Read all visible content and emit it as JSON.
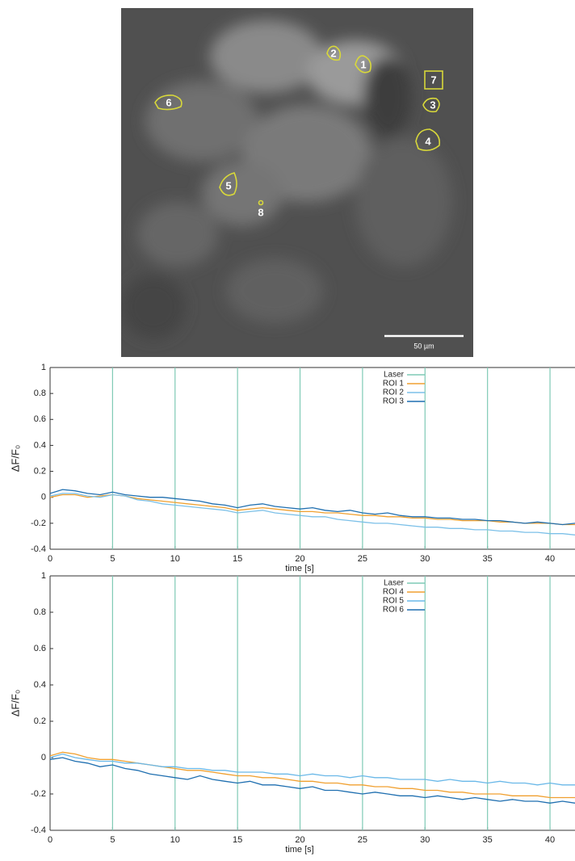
{
  "image": {
    "roi_labels": [
      "1",
      "2",
      "3",
      "4",
      "5",
      "6",
      "7",
      "8"
    ],
    "scale_bar": "50 µm"
  },
  "chart_data": [
    {
      "type": "line",
      "y_label": "ΔF/F₀",
      "x_label": "time [s]",
      "xlim": [
        0,
        42
      ],
      "xticks": [
        0,
        5,
        10,
        15,
        20,
        25,
        30,
        35,
        40
      ],
      "ylim": [
        -0.4,
        1
      ],
      "yticks": [
        -0.4,
        -0.2,
        0,
        0.2,
        0.4,
        0.6,
        0.8,
        1
      ],
      "events": {
        "name": "Laser",
        "color": "#7fcab5",
        "x": [
          5,
          10,
          15,
          20,
          25,
          30,
          35,
          40
        ]
      },
      "x": [
        0,
        1,
        2,
        3,
        4,
        5,
        6,
        7,
        8,
        9,
        10,
        11,
        12,
        13,
        14,
        15,
        16,
        17,
        18,
        19,
        20,
        21,
        22,
        23,
        24,
        25,
        26,
        27,
        28,
        29,
        30,
        31,
        32,
        33,
        34,
        35,
        36,
        37,
        38,
        39,
        40,
        41,
        42
      ],
      "series": [
        {
          "name": "ROI 1",
          "color": "#f0a030",
          "values": [
            0,
            0.02,
            0.02,
            0,
            0.01,
            0.02,
            0.01,
            -0.01,
            -0.02,
            -0.03,
            -0.04,
            -0.05,
            -0.06,
            -0.07,
            -0.08,
            -0.1,
            -0.09,
            -0.08,
            -0.09,
            -0.1,
            -0.11,
            -0.11,
            -0.12,
            -0.12,
            -0.13,
            -0.14,
            -0.14,
            -0.15,
            -0.15,
            -0.16,
            -0.16,
            -0.17,
            -0.17,
            -0.18,
            -0.18,
            -0.18,
            -0.19,
            -0.19,
            -0.2,
            -0.2,
            -0.2,
            -0.21,
            -0.21
          ]
        },
        {
          "name": "ROI 2",
          "color": "#7cc0e8",
          "values": [
            0.01,
            0.03,
            0.03,
            0.01,
            0,
            0.02,
            0.01,
            -0.02,
            -0.03,
            -0.05,
            -0.06,
            -0.07,
            -0.08,
            -0.09,
            -0.1,
            -0.12,
            -0.11,
            -0.1,
            -0.12,
            -0.13,
            -0.14,
            -0.15,
            -0.15,
            -0.17,
            -0.18,
            -0.19,
            -0.2,
            -0.2,
            -0.21,
            -0.22,
            -0.23,
            -0.23,
            -0.24,
            -0.24,
            -0.25,
            -0.25,
            -0.26,
            -0.26,
            -0.27,
            -0.27,
            -0.28,
            -0.28,
            -0.29
          ]
        },
        {
          "name": "ROI 3",
          "color": "#1f6fb0",
          "values": [
            0.03,
            0.06,
            0.05,
            0.03,
            0.02,
            0.04,
            0.02,
            0.01,
            0,
            0,
            -0.01,
            -0.02,
            -0.03,
            -0.05,
            -0.06,
            -0.08,
            -0.06,
            -0.05,
            -0.07,
            -0.08,
            -0.09,
            -0.08,
            -0.1,
            -0.11,
            -0.1,
            -0.12,
            -0.13,
            -0.12,
            -0.14,
            -0.15,
            -0.15,
            -0.16,
            -0.16,
            -0.17,
            -0.17,
            -0.18,
            -0.18,
            -0.19,
            -0.2,
            -0.19,
            -0.2,
            -0.21,
            -0.2
          ]
        }
      ]
    },
    {
      "type": "line",
      "y_label": "ΔF/F₀",
      "x_label": "time [s]",
      "xlim": [
        0,
        42
      ],
      "xticks": [
        0,
        5,
        10,
        15,
        20,
        25,
        30,
        35,
        40
      ],
      "ylim": [
        -0.4,
        1
      ],
      "yticks": [
        -0.4,
        -0.2,
        0,
        0.2,
        0.4,
        0.6,
        0.8,
        1
      ],
      "events": {
        "name": "Laser",
        "color": "#7fcab5",
        "x": [
          5,
          10,
          15,
          20,
          25,
          30,
          35,
          40
        ]
      },
      "x": [
        0,
        1,
        2,
        3,
        4,
        5,
        6,
        7,
        8,
        9,
        10,
        11,
        12,
        13,
        14,
        15,
        16,
        17,
        18,
        19,
        20,
        21,
        22,
        23,
        24,
        25,
        26,
        27,
        28,
        29,
        30,
        31,
        32,
        33,
        34,
        35,
        36,
        37,
        38,
        39,
        40,
        41,
        42
      ],
      "series": [
        {
          "name": "ROI 4",
          "color": "#f0a030",
          "values": [
            0.01,
            0.03,
            0.02,
            0,
            -0.01,
            -0.01,
            -0.02,
            -0.03,
            -0.04,
            -0.05,
            -0.06,
            -0.07,
            -0.07,
            -0.08,
            -0.09,
            -0.1,
            -0.1,
            -0.11,
            -0.11,
            -0.12,
            -0.13,
            -0.13,
            -0.14,
            -0.14,
            -0.15,
            -0.15,
            -0.16,
            -0.16,
            -0.17,
            -0.17,
            -0.18,
            -0.18,
            -0.19,
            -0.19,
            -0.2,
            -0.2,
            -0.2,
            -0.21,
            -0.21,
            -0.21,
            -0.22,
            -0.22,
            -0.22
          ]
        },
        {
          "name": "ROI 5",
          "color": "#6ab8e8",
          "values": [
            0,
            0.02,
            0,
            -0.01,
            -0.02,
            -0.02,
            -0.03,
            -0.03,
            -0.04,
            -0.05,
            -0.05,
            -0.06,
            -0.06,
            -0.07,
            -0.07,
            -0.08,
            -0.08,
            -0.08,
            -0.09,
            -0.09,
            -0.1,
            -0.09,
            -0.1,
            -0.1,
            -0.11,
            -0.1,
            -0.11,
            -0.11,
            -0.12,
            -0.12,
            -0.12,
            -0.13,
            -0.12,
            -0.13,
            -0.13,
            -0.14,
            -0.13,
            -0.14,
            -0.14,
            -0.15,
            -0.14,
            -0.15,
            -0.15
          ]
        },
        {
          "name": "ROI 6",
          "color": "#1f6fb0",
          "values": [
            -0.01,
            0,
            -0.02,
            -0.03,
            -0.05,
            -0.04,
            -0.06,
            -0.07,
            -0.09,
            -0.1,
            -0.11,
            -0.12,
            -0.1,
            -0.12,
            -0.13,
            -0.14,
            -0.13,
            -0.15,
            -0.15,
            -0.16,
            -0.17,
            -0.16,
            -0.18,
            -0.18,
            -0.19,
            -0.2,
            -0.19,
            -0.2,
            -0.21,
            -0.21,
            -0.22,
            -0.21,
            -0.22,
            -0.23,
            -0.22,
            -0.23,
            -0.24,
            -0.23,
            -0.24,
            -0.24,
            -0.25,
            -0.24,
            -0.25
          ]
        }
      ]
    }
  ]
}
